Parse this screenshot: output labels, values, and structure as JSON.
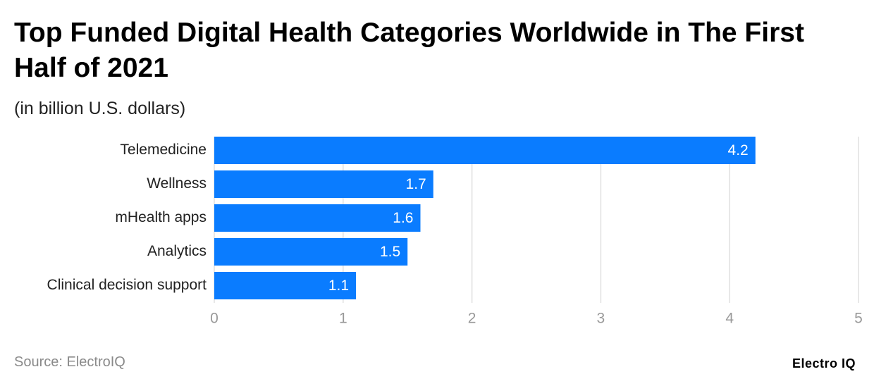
{
  "chart_data": {
    "type": "bar",
    "orientation": "horizontal",
    "title": "Top Funded Digital Health Categories Worldwide in The First Half of 2021",
    "subtitle": "(in billion U.S. dollars)",
    "categories": [
      "Telemedicine",
      "Wellness",
      "mHealth apps",
      "Analytics",
      "Clinical decision support"
    ],
    "values": [
      4.2,
      1.7,
      1.6,
      1.5,
      1.1
    ],
    "color": "#0a7cff",
    "xlim": [
      0,
      5
    ],
    "xticks": [
      0,
      1,
      2,
      3,
      4,
      5
    ],
    "grid": true,
    "source": "Source: ElectroIQ",
    "brand": "Electro IQ"
  }
}
